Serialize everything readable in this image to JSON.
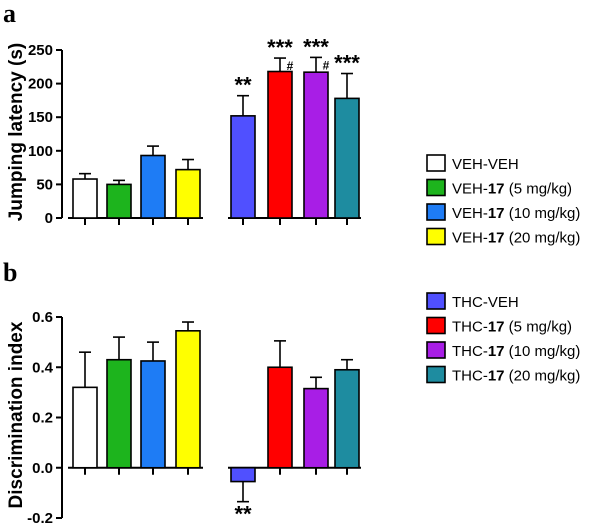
{
  "panel_labels": {
    "a": "a",
    "b": "b"
  },
  "chart_data": [
    {
      "type": "bar",
      "panel": "a",
      "ylabel": "Jumping latency (s)",
      "ylim": [
        0,
        250
      ],
      "yticks": [
        0,
        50,
        100,
        150,
        200,
        250
      ],
      "ytick_labels": [
        "0",
        "50",
        "100",
        "150",
        "200",
        "250"
      ],
      "categories": [
        "VEH-VEH",
        "VEH-17 (5 mg/kg)",
        "VEH-17 (10 mg/kg)",
        "VEH-17 (20 mg/kg)",
        "THC-VEH",
        "THC-17 (5 mg/kg)",
        "THC-17 (10 mg/kg)",
        "THC-17 (20 mg/kg)"
      ],
      "values": [
        58,
        50,
        93,
        72,
        152,
        218,
        217,
        178
      ],
      "errors": [
        8,
        6,
        14,
        15,
        30,
        20,
        22,
        37
      ],
      "significance": [
        "",
        "",
        "",
        "",
        "**",
        "***",
        "***",
        "***"
      ],
      "hash_marks": [
        "",
        "",
        "",
        "",
        "",
        "#",
        "#",
        ""
      ]
    },
    {
      "type": "bar",
      "panel": "b",
      "ylabel": "Discrimination index",
      "ylim": [
        -0.2,
        0.6
      ],
      "yticks": [
        -0.2,
        0.0,
        0.2,
        0.4,
        0.6
      ],
      "ytick_labels": [
        "-0.2",
        "0.0",
        "0.2",
        "0.4",
        "0.6"
      ],
      "categories": [
        "VEH-VEH",
        "VEH-17 (5 mg/kg)",
        "VEH-17 (10 mg/kg)",
        "VEH-17 (20 mg/kg)",
        "THC-VEH",
        "THC-17 (5 mg/kg)",
        "THC-17 (10 mg/kg)",
        "THC-17 (20 mg/kg)"
      ],
      "values": [
        0.32,
        0.43,
        0.425,
        0.545,
        -0.055,
        0.4,
        0.315,
        0.39
      ],
      "errors": [
        0.14,
        0.09,
        0.075,
        0.035,
        0.08,
        0.105,
        0.045,
        0.04
      ],
      "significance": [
        "",
        "",
        "",
        "",
        "**",
        "",
        "",
        ""
      ]
    }
  ],
  "bar_colors": [
    "#ffffff",
    "#1db41d",
    "#1e7cf5",
    "#ffff00",
    "#5050ff",
    "#ff0000",
    "#a81ee6",
    "#1e8ca0"
  ],
  "legend": [
    {
      "prefix": "VEH-VEH",
      "bold": "",
      "suffix": ""
    },
    {
      "prefix": "VEH-",
      "bold": "17",
      "suffix": " (5 mg/kg)"
    },
    {
      "prefix": "VEH-",
      "bold": "17",
      "suffix": " (10 mg/kg)"
    },
    {
      "prefix": "VEH-",
      "bold": "17",
      "suffix": " (20 mg/kg)"
    },
    {
      "prefix": "THC-VEH",
      "bold": "",
      "suffix": ""
    },
    {
      "prefix": "THC-",
      "bold": "17",
      "suffix": " (5 mg/kg)"
    },
    {
      "prefix": "THC-",
      "bold": "17",
      "suffix": " (10 mg/kg)"
    },
    {
      "prefix": "THC-",
      "bold": "17",
      "suffix": " (20 mg/kg)"
    }
  ]
}
